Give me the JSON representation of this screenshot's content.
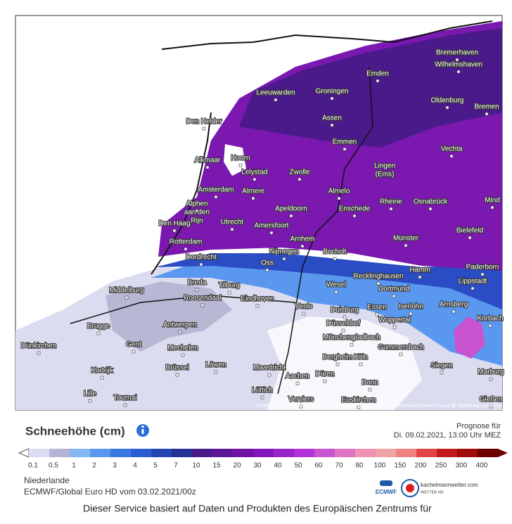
{
  "map": {
    "attribution": "Kartenmaterial: Map data © OpenStreetMap contributors, rendering GIScience Research Group @ Heidelberg University",
    "cities": [
      "Bremerhaven",
      "Wilhelmshaven",
      "Emden",
      "Leeuwarden",
      "Groningen",
      "Oldenburg",
      "Bremen",
      "Den Helder",
      "Assen",
      "Emmen",
      "Vechta",
      "Hoorn",
      "Alkmaar",
      "Lelystad",
      "Zwolle",
      "Lingen",
      "(Ems)",
      "Amsterdam",
      "Almere",
      "Almelo",
      "Rheine",
      "Osnabrück",
      "Mind",
      "Alphen",
      "aan den",
      "Rijn",
      "Apeldoorn",
      "Enschede",
      "Den Haag",
      "Utrecht",
      "Amersfoort",
      "Bielefeld",
      "Arnhem",
      "Rotterdam",
      "Münster",
      "Dordrecht",
      "Nijmegen",
      "Bocholt",
      "Oss",
      "Paderborn",
      "Hamm",
      "Recklinghausen",
      "Lippstadt",
      "Breda",
      "Tilburg",
      "Wesel",
      "Dortmund",
      "Middelburg",
      "Roosendaal",
      "Eindhoven",
      "Arnsberg",
      "Venlo",
      "Duisburg",
      "Essen",
      "Iserlohn",
      "Korbach",
      "Brugge",
      "Antwerpen",
      "Düsseldorf",
      "Wuppertal",
      "Mönchengladbach",
      "Gent",
      "Mechelen",
      "Dünkirchen",
      "Gummersbach",
      "Bergheim",
      "Köln",
      "Siegen",
      "Kortrijk",
      "Brüssel",
      "Löwen",
      "Maastricht",
      "Aachen",
      "Düren",
      "Marburg",
      "Bonn",
      "Lille",
      "Lüttich",
      "Tournai",
      "Verviers",
      "Euskirchen",
      "Gießen"
    ]
  },
  "legend": {
    "title": "Schneehöhe (cm)",
    "forecast_label": "Prognose für",
    "forecast_time": "Di. 09.02.2021, 13:00 Uhr MEZ",
    "values": [
      0.1,
      0.5,
      1,
      2,
      3,
      4,
      5,
      7,
      10,
      15,
      20,
      30,
      40,
      50,
      60,
      70,
      80,
      100,
      150,
      200,
      250,
      300,
      400
    ],
    "colors": [
      "#dcdcf2",
      "#b4b4d4",
      "#86b6f2",
      "#5a98f0",
      "#3a78e4",
      "#2a5cd4",
      "#2446b4",
      "#243294",
      "#4a1a8a",
      "#5c1594",
      "#7012a4",
      "#8414bc",
      "#9a24cc",
      "#b234d8",
      "#c854d0",
      "#e072c2",
      "#f092b4",
      "#f0a4a4",
      "#f08282",
      "#e04444",
      "#c01a1a",
      "#a00a0a",
      "#700000"
    ]
  },
  "footer": {
    "region": "Niederlande",
    "model": "ECMWF/Global Euro HD vom 03.02.2021/00z",
    "logo_ecmwf": "ECMWF",
    "logo_site": "kachelmannwetter.com",
    "logo_sub": "WETTER HD",
    "service": "Dieser Service basiert auf Daten und Produkten des Europäischen Zentrums für"
  }
}
